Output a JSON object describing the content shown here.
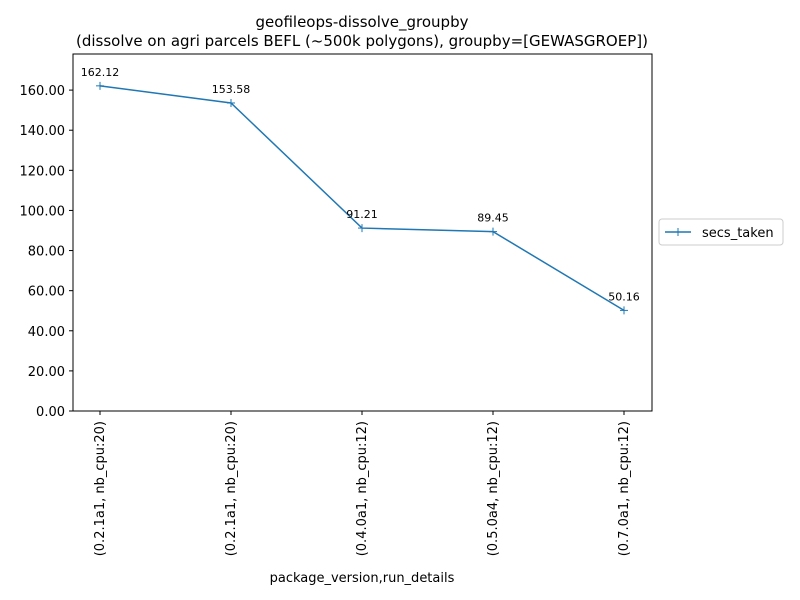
{
  "chart_data": {
    "type": "line",
    "title": "geofileops-dissolve_groupby",
    "subtitle": "(dissolve on agri parcels BEFL (~500k polygons), groupby=[GEWASGROEP])",
    "xlabel": "package_version,run_details",
    "ylabel": "",
    "categories": [
      "(0.2.1a1, nb_cpu:20)",
      "(0.2.1a1, nb_cpu:20)",
      "(0.4.0a1, nb_cpu:12)",
      "(0.5.0a4, nb_cpu:12)",
      "(0.7.0a1, nb_cpu:12)"
    ],
    "series": [
      {
        "name": "secs_taken",
        "values": [
          162.12,
          153.58,
          91.21,
          89.45,
          50.16
        ],
        "color": "#1f77b4",
        "marker": "plus"
      }
    ],
    "data_labels": [
      "162.12",
      "153.58",
      "91.21",
      "89.45",
      "50.16"
    ],
    "yticks": [
      0,
      20,
      40,
      60,
      80,
      100,
      120,
      140,
      160
    ],
    "ytick_labels": [
      "0.00",
      "20.00",
      "40.00",
      "60.00",
      "80.00",
      "100.00",
      "120.00",
      "140.00",
      "160.00"
    ],
    "ylim": [
      0,
      178
    ],
    "grid": false,
    "legend": "outside-right"
  }
}
